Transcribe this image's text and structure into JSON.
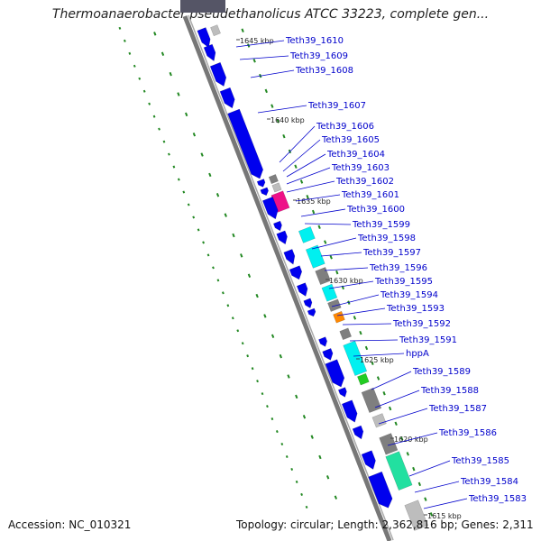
{
  "title": "Thermoanaerobacter pseudethanolicus ATCC 33223, complete gen...",
  "footer": {
    "accession": "Accession: NC_010321",
    "summary": "Topology: circular; Length: 2,362,816 bp; Genes: 2,311"
  },
  "colors": {
    "backbone": "#777777",
    "cds_forward": "#0000ee",
    "label_blue": "#0000cc",
    "gc_tick": "#228822",
    "cyan": "#00f0f0",
    "gray": "#7f7f7f",
    "light_gray": "#bdbdbd",
    "magenta": "#ee1188",
    "orange": "#ff8800",
    "green": "#22cc22",
    "teal": "#22e0a0"
  },
  "tick_labels": [
    "1645 kbp",
    "1640 kbp",
    "1635 kbp",
    "1630 kbp",
    "1625 kbp",
    "1620 kbp",
    "1615 kbp"
  ],
  "gene_labels": [
    "Teth39_1610",
    "Teth39_1609",
    "Teth39_1608",
    "Teth39_1607",
    "Teth39_1606",
    "Teth39_1605",
    "Teth39_1604",
    "Teth39_1603",
    "Teth39_1602",
    "Teth39_1601",
    "Teth39_1600",
    "Teth39_1599",
    "Teth39_1598",
    "Teth39_1597",
    "Teth39_1596",
    "Teth39_1595",
    "Teth39_1594",
    "Teth39_1593",
    "Teth39_1592",
    "Teth39_1591",
    "hppA",
    "Teth39_1589",
    "Teth39_1588",
    "Teth39_1587",
    "Teth39_1586",
    "Teth39_1585",
    "Teth39_1584",
    "Teth39_1583"
  ]
}
